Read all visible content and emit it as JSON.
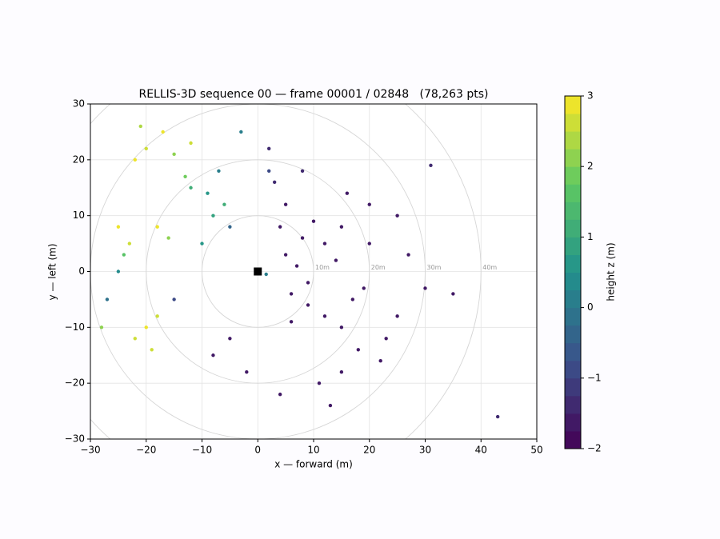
{
  "chart_data": {
    "type": "scatter",
    "title": "RELLIS-3D sequence 00 — frame 00001 / 02848   (78,263 pts)",
    "x_label": "x — forward (m)",
    "y_label": "y — left (m)",
    "colorbar_label": "height z (m)",
    "xlim": [
      -30,
      50
    ],
    "ylim": [
      -30,
      30
    ],
    "xticks": [
      {
        "value": -30,
        "label": "−30"
      },
      {
        "value": -20,
        "label": "−20"
      },
      {
        "value": -10,
        "label": "−10"
      },
      0,
      10,
      20,
      30,
      40,
      50
    ],
    "yticks": [
      {
        "value": -30,
        "label": "−30"
      },
      {
        "value": -20,
        "label": "−20"
      },
      {
        "value": -10,
        "label": "−10"
      },
      0,
      10,
      20,
      30
    ],
    "zlim": [
      -2,
      3
    ],
    "zticks": [
      {
        "value": -2,
        "label": "−2"
      },
      {
        "value": -1,
        "label": "−1"
      },
      0,
      1,
      2,
      3
    ],
    "colormap": [
      "#440154",
      "#3b528b",
      "#21918c",
      "#5ec962",
      "#fde725"
    ],
    "levels": 20,
    "grid": true,
    "range_rings": [
      {
        "value": 10,
        "label": "10m"
      },
      {
        "value": 20,
        "label": "20m"
      },
      {
        "value": 30,
        "label": "30m"
      },
      {
        "value": 40,
        "label": "40m"
      }
    ],
    "markers": [
      {
        "x": 0,
        "y": 0,
        "color": "#000000"
      }
    ],
    "points": {
      "x": [
        5,
        6,
        8,
        9,
        12,
        12,
        15,
        15,
        18,
        20,
        22,
        25,
        11,
        15,
        5,
        3,
        -2,
        4,
        20,
        25,
        27,
        8,
        2,
        13,
        17,
        10,
        -5,
        -8,
        30,
        35,
        43,
        31,
        7,
        9,
        14,
        19,
        6,
        4,
        23,
        16,
        -22,
        -20,
        -17,
        -15,
        -12,
        -25,
        -23,
        -18,
        -16,
        -20,
        -22,
        -19,
        -28,
        -8,
        -6,
        -10,
        -7,
        -5,
        -12,
        -3,
        2,
        -25,
        -27,
        -15,
        1.5,
        -21,
        -13,
        -9,
        -24,
        -18
      ],
      "y": [
        3,
        -4,
        6,
        -6,
        5,
        -8,
        8,
        -10,
        -14,
        12,
        -16,
        10,
        -20,
        -18,
        12,
        16,
        -18,
        -22,
        5,
        -8,
        3,
        18,
        22,
        -24,
        -5,
        9,
        -12,
        -15,
        -3,
        -4,
        -26,
        19,
        1,
        -2,
        2,
        -3,
        -9,
        8,
        -12,
        14,
        20,
        22,
        25,
        21,
        23,
        8,
        5,
        8,
        6,
        -10,
        -12,
        -14,
        -10,
        10,
        12,
        5,
        18,
        8,
        15,
        25,
        18,
        0,
        -5,
        -5,
        -0.5,
        26,
        17,
        14,
        3,
        -8
      ],
      "z": [
        -1.7,
        -1.7,
        -1.7,
        -1.7,
        -1.7,
        -1.7,
        -1.7,
        -1.7,
        -1.7,
        -1.7,
        -1.7,
        -1.7,
        -1.7,
        -1.7,
        -1.6,
        -1.5,
        -1.6,
        -1.7,
        -1.7,
        -1.7,
        -1.7,
        -1.5,
        -1.4,
        -1.7,
        -1.7,
        -1.7,
        -1.6,
        -1.6,
        -1.7,
        -1.7,
        -1.5,
        -1.5,
        -1.7,
        -1.7,
        -1.7,
        -1.7,
        -1.7,
        -1.7,
        -1.7,
        -1.6,
        2.8,
        2.5,
        2.9,
        2.2,
        2.7,
        2.9,
        2.6,
        2.8,
        2.0,
        2.9,
        2.7,
        2.5,
        2.0,
        0.8,
        1.0,
        0.5,
        0.2,
        -0.5,
        1.2,
        0.0,
        -1.0,
        0.3,
        -0.2,
        -0.8,
        0.2,
        2.4,
        1.8,
        0.6,
        1.5,
        2.6
      ]
    }
  }
}
